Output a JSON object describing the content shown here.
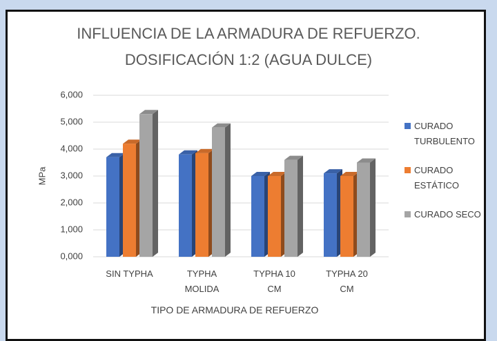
{
  "chart_data": {
    "type": "bar3d",
    "title": "INFLUENCIA DE LA ARMADURA DE REFUERZO. DOSIFICACIÓN 1:2 (AGUA DULCE)",
    "x_label": "TIPO DE ARMADURA DE REFUERZO",
    "y_label": "MPa",
    "categories": [
      "SIN TYPHA",
      "TYPHA MOLIDA",
      "TYPHA 10 CM",
      "TYPHA 20 CM"
    ],
    "series": [
      {
        "name": "CURADO TURBULENTO",
        "color": "#4472c4",
        "values": [
          3.7,
          3.8,
          3.0,
          3.1
        ]
      },
      {
        "name": "CURADO ESTÁTICO",
        "color": "#ed7d31",
        "values": [
          4.2,
          3.85,
          3.0,
          3.0
        ]
      },
      {
        "name": "CURADO SECO",
        "color": "#a5a5a5",
        "values": [
          5.3,
          4.8,
          3.6,
          3.5
        ]
      }
    ],
    "ylim": [
      0,
      6
    ],
    "yticks": [
      {
        "value": 0,
        "label": "0,000"
      },
      {
        "value": 1,
        "label": "1,000"
      },
      {
        "value": 2,
        "label": "2,000"
      },
      {
        "value": 3,
        "label": "3,000"
      },
      {
        "value": 4,
        "label": "4,000"
      },
      {
        "value": 5,
        "label": "5,000"
      },
      {
        "value": 6,
        "label": "6,000"
      }
    ],
    "grid": true,
    "legend": "right"
  }
}
